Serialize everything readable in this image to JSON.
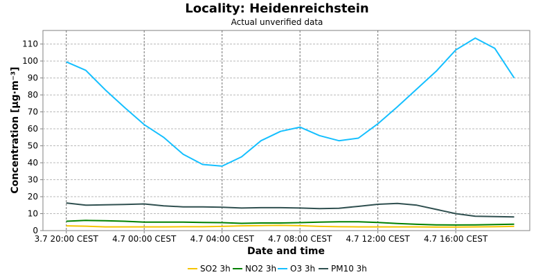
{
  "chart_data": {
    "type": "line",
    "title": "Locality: Heidenreichstein",
    "subtitle": "Actual unverified data",
    "xlabel": "Date and time",
    "ylabel": "Concentration [µg·m⁻³]",
    "x_ticks": [
      "3.7 20:00 CEST",
      "4.7 00:00 CEST",
      "4.7 04:00 CEST",
      "4.7 08:00 CEST",
      "4.7 12:00 CEST",
      "4.7 16:00 CEST"
    ],
    "x_tick_hours": [
      0,
      4,
      8,
      12,
      16,
      20
    ],
    "x_hours": [
      0,
      1,
      2,
      3,
      4,
      5,
      6,
      7,
      8,
      9,
      10,
      11,
      12,
      13,
      14,
      15,
      16,
      17,
      18,
      19,
      20,
      21,
      22,
      23
    ],
    "x_range_hours": [
      -1.2,
      23.8
    ],
    "y_ticks": [
      0,
      10,
      20,
      30,
      40,
      50,
      60,
      70,
      80,
      90,
      100,
      110
    ],
    "ylim": [
      0,
      118
    ],
    "grid": true,
    "legend_position": "bottom",
    "series": [
      {
        "name": "SO2 3h",
        "color": "#f5c400",
        "values": [
          2.8,
          2.6,
          2.2,
          2.2,
          2.2,
          2.2,
          2.3,
          2.3,
          2.5,
          2.8,
          3.0,
          3.1,
          2.9,
          2.5,
          2.3,
          2.2,
          2.2,
          2.2,
          2.2,
          2.1,
          2.1,
          2.2,
          2.3,
          2.5
        ]
      },
      {
        "name": "NO2 3h",
        "color": "#008000",
        "values": [
          5.5,
          6.0,
          5.8,
          5.5,
          5.0,
          5.0,
          5.0,
          4.8,
          4.7,
          4.3,
          4.5,
          4.5,
          4.7,
          5.0,
          5.2,
          5.2,
          4.8,
          4.2,
          3.7,
          3.4,
          3.3,
          3.4,
          3.6,
          3.8
        ]
      },
      {
        "name": "O3 3h",
        "color": "#14bfff",
        "values": [
          99.5,
          94.5,
          83.0,
          72.5,
          62.5,
          55.0,
          45.0,
          39.0,
          38.0,
          43.5,
          53.0,
          58.5,
          61.0,
          56.0,
          53.0,
          54.5,
          63.0,
          73.0,
          83.5,
          94.0,
          106.5,
          113.5,
          107.5,
          90.0
        ]
      },
      {
        "name": "PM10 3h",
        "color": "#2f4f4f",
        "values": [
          16.3,
          15.0,
          15.2,
          15.4,
          15.7,
          14.6,
          14.0,
          14.0,
          13.8,
          13.3,
          13.5,
          13.5,
          13.3,
          13.0,
          13.2,
          14.3,
          15.5,
          16.0,
          15.0,
          12.5,
          10.0,
          8.5,
          8.3,
          8.1
        ]
      }
    ]
  }
}
